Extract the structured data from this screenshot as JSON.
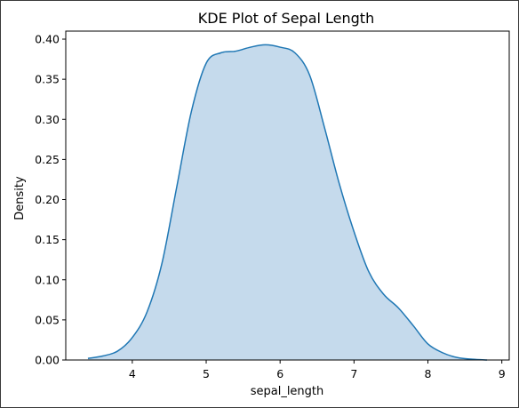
{
  "chart_data": {
    "type": "area",
    "title": "KDE Plot of Sepal Length",
    "xlabel": "sepal_length",
    "ylabel": "Density",
    "xlim": [
      3.1,
      9.1
    ],
    "ylim": [
      0,
      0.41
    ],
    "xticks": [
      4,
      5,
      6,
      7,
      8,
      9
    ],
    "xtick_labels": [
      "4",
      "5",
      "6",
      "7",
      "8",
      "9"
    ],
    "yticks": [
      0,
      0.05,
      0.1,
      0.15,
      0.2,
      0.25,
      0.3,
      0.35,
      0.4
    ],
    "ytick_labels": [
      "0.00",
      "0.05",
      "0.10",
      "0.15",
      "0.20",
      "0.25",
      "0.30",
      "0.35",
      "0.40"
    ],
    "grid": false,
    "series": [
      {
        "x": [
          3.4,
          3.6,
          3.8,
          4.0,
          4.2,
          4.4,
          4.6,
          4.8,
          5.0,
          5.2,
          5.4,
          5.6,
          5.8,
          6.0,
          6.2,
          6.4,
          6.6,
          6.8,
          7.0,
          7.2,
          7.4,
          7.6,
          7.8,
          8.0,
          8.2,
          8.4,
          8.6,
          8.8
        ],
        "y": [
          0.002,
          0.005,
          0.011,
          0.028,
          0.06,
          0.12,
          0.215,
          0.31,
          0.37,
          0.383,
          0.385,
          0.39,
          0.393,
          0.39,
          0.383,
          0.355,
          0.29,
          0.22,
          0.16,
          0.11,
          0.082,
          0.065,
          0.043,
          0.02,
          0.009,
          0.003,
          0.001,
          0.0
        ],
        "line_color": "#1f77b4",
        "fill_color": "#c5daec"
      }
    ]
  }
}
